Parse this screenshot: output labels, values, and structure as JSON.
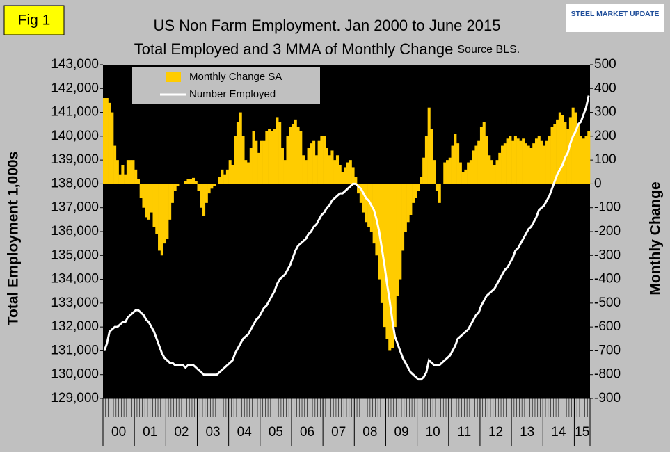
{
  "fig_label": "Fig 1",
  "logo": {
    "text": "STEEL MARKET UPDATE"
  },
  "chart_data": {
    "type": "bar-line",
    "title": "US Non Farm Employment. Jan 2000 to June 2015",
    "subtitle": "Total Employed and 3 MMA of Monthly Change",
    "source": "Source BLS.",
    "y_label": "Total Employment 1,000s",
    "y2_label": "Monthly Change",
    "x_labels": [
      "00",
      "01",
      "02",
      "03",
      "04",
      "05",
      "06",
      "07",
      "08",
      "09",
      "10",
      "11",
      "12",
      "13",
      "14",
      "15"
    ],
    "ylim": [
      129000,
      143000
    ],
    "yticks": [
      {
        "value": 129000,
        "label": "129,000"
      },
      {
        "value": 130000,
        "label": "130,000"
      },
      {
        "value": 131000,
        "label": "131,000"
      },
      {
        "value": 132000,
        "label": "132,000"
      },
      {
        "value": 133000,
        "label": "133,000"
      },
      {
        "value": 134000,
        "label": "134,000"
      },
      {
        "value": 135000,
        "label": "135,000"
      },
      {
        "value": 136000,
        "label": "136,000"
      },
      {
        "value": 137000,
        "label": "137,000"
      },
      {
        "value": 138000,
        "label": "138,000"
      },
      {
        "value": 139000,
        "label": "139,000"
      },
      {
        "value": 140000,
        "label": "140,000"
      },
      {
        "value": 141000,
        "label": "141,000"
      },
      {
        "value": 142000,
        "label": "142,000"
      },
      {
        "value": 143000,
        "label": "143,000"
      }
    ],
    "y2lim": [
      -900,
      500
    ],
    "y2ticks": [
      -900,
      -800,
      -700,
      -600,
      -500,
      -400,
      -300,
      -200,
      -100,
      0,
      100,
      200,
      300,
      400,
      500
    ],
    "legend": "top-left",
    "series": [
      {
        "name": "Monthly Change SA",
        "color": "#ffcc00",
        "axis": "y2",
        "values": [
          360,
          360,
          340,
          300,
          160,
          100,
          40,
          80,
          40,
          100,
          100,
          100,
          60,
          20,
          -60,
          -100,
          -140,
          -150,
          -120,
          -180,
          -210,
          -280,
          -300,
          -250,
          -230,
          -150,
          -80,
          -30,
          -10,
          0,
          0,
          10,
          20,
          20,
          25,
          10,
          -30,
          -100,
          -135,
          -80,
          -40,
          -20,
          -10,
          0,
          30,
          60,
          40,
          60,
          100,
          80,
          200,
          260,
          300,
          200,
          100,
          90,
          150,
          220,
          180,
          130,
          180,
          180,
          220,
          230,
          220,
          230,
          280,
          260,
          150,
          100,
          200,
          240,
          250,
          270,
          240,
          220,
          120,
          100,
          150,
          170,
          180,
          120,
          180,
          200,
          200,
          150,
          120,
          140,
          100,
          120,
          80,
          50,
          70,
          90,
          100,
          70,
          30,
          -40,
          -80,
          -120,
          -160,
          -180,
          -200,
          -250,
          -300,
          -400,
          -500,
          -600,
          -650,
          -700,
          -690,
          -600,
          -470,
          -400,
          -280,
          -200,
          -160,
          -130,
          -80,
          -60,
          -30,
          30,
          110,
          200,
          320,
          230,
          100,
          -30,
          -80,
          0,
          90,
          100,
          110,
          160,
          210,
          170,
          90,
          50,
          60,
          90,
          100,
          140,
          160,
          180,
          240,
          260,
          200,
          120,
          100,
          80,
          100,
          130,
          160,
          170,
          190,
          200,
          180,
          200,
          190,
          180,
          190,
          170,
          160,
          150,
          170,
          190,
          200,
          180,
          160,
          180,
          200,
          240,
          250,
          270,
          300,
          290,
          260,
          230,
          280,
          320,
          300,
          250,
          200,
          190,
          200,
          220
        ]
      },
      {
        "name": "Number Employed",
        "color": "#ffffff",
        "values": [
          131000,
          131300,
          131800,
          131900,
          132000,
          132000,
          132100,
          132200,
          132200,
          132400,
          132500,
          132600,
          132700,
          132700,
          132600,
          132500,
          132300,
          132200,
          132000,
          131800,
          131500,
          131200,
          130900,
          130700,
          130600,
          130500,
          130500,
          130400,
          130400,
          130400,
          130400,
          130300,
          130400,
          130400,
          130400,
          130300,
          130200,
          130100,
          130000,
          130000,
          130000,
          130000,
          130000,
          130000,
          130100,
          130200,
          130300,
          130400,
          130500,
          130600,
          130900,
          131100,
          131300,
          131500,
          131600,
          131700,
          131900,
          132100,
          132300,
          132400,
          132600,
          132800,
          132900,
          133100,
          133300,
          133500,
          133800,
          134000,
          134100,
          134200,
          134400,
          134600,
          134900,
          135200,
          135400,
          135500,
          135600,
          135700,
          135900,
          136000,
          136200,
          136300,
          136500,
          136700,
          136800,
          137000,
          137100,
          137300,
          137400,
          137500,
          137600,
          137600,
          137700,
          137800,
          137900,
          138000,
          138000,
          137900,
          137800,
          137600,
          137400,
          137300,
          137100,
          136900,
          136500,
          136000,
          135300,
          134600,
          133800,
          133100,
          132300,
          131600,
          131300,
          131000,
          130700,
          130500,
          130300,
          130100,
          130000,
          129900,
          129800,
          129800,
          129900,
          130100,
          130600,
          130500,
          130400,
          130400,
          130400,
          130500,
          130600,
          130700,
          130800,
          131000,
          131200,
          131500,
          131600,
          131700,
          131800,
          131900,
          132100,
          132300,
          132500,
          132600,
          132900,
          133100,
          133300,
          133400,
          133500,
          133600,
          133800,
          134000,
          134200,
          134400,
          134500,
          134700,
          134900,
          135200,
          135300,
          135500,
          135700,
          135900,
          136100,
          136200,
          136400,
          136600,
          136900,
          137000,
          137100,
          137300,
          137500,
          137800,
          138100,
          138400,
          138600,
          138800,
          139100,
          139300,
          139700,
          140000,
          140200,
          140500,
          140600,
          140900,
          141200,
          141700
        ]
      }
    ]
  }
}
